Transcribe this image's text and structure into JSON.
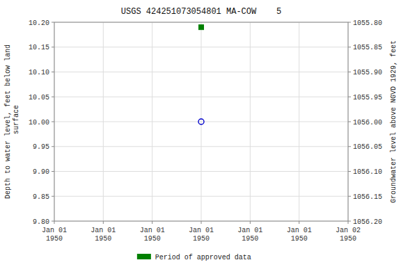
{
  "chart_data": {
    "type": "scatter",
    "title": "USGS 424251073054801 MA-COW    5",
    "y_label": "Depth to water level, feet below land\n surface",
    "y2_label": "Groundwater level above NGVD 1929, feet",
    "categories": [
      "Jan 01\n1950",
      "Jan 01\n1950",
      "Jan 01\n1950",
      "Jan 01\n1950",
      "Jan 01\n1950",
      "Jan 01\n1950",
      "Jan 02\n1950"
    ],
    "series": [
      {
        "values": [
          null,
          null,
          null,
          10.0,
          null,
          null,
          null
        ],
        "color": "#0000cc",
        "marker": "open-circle"
      },
      {
        "name": "Period of approved data",
        "values": [
          null,
          null,
          null,
          10.19,
          null,
          null,
          null
        ],
        "color": "#008000",
        "marker": "square"
      }
    ],
    "ylim": [
      9.8,
      10.2
    ],
    "yticks": [
      {
        "value": 9.8,
        "label": "9.80"
      },
      {
        "value": 9.85,
        "label": "9.85"
      },
      {
        "value": 9.9,
        "label": "9.90"
      },
      {
        "value": 9.95,
        "label": "9.95"
      },
      {
        "value": 10.0,
        "label": "10.00"
      },
      {
        "value": 10.05,
        "label": "10.05"
      },
      {
        "value": 10.1,
        "label": "10.10"
      },
      {
        "value": 10.15,
        "label": "10.15"
      },
      {
        "value": 10.2,
        "label": "10.20"
      }
    ],
    "y2lim": [
      1056.2,
      1055.8
    ],
    "y2ticks": [
      {
        "value": 1056.2,
        "label": "1056.20"
      },
      {
        "value": 1056.15,
        "label": "1056.15"
      },
      {
        "value": 1056.1,
        "label": "1056.10"
      },
      {
        "value": 1056.05,
        "label": "1056.05"
      },
      {
        "value": 1056.0,
        "label": "1056.00"
      },
      {
        "value": 1055.95,
        "label": "1055.95"
      },
      {
        "value": 1055.9,
        "label": "1055.90"
      },
      {
        "value": 1055.85,
        "label": "1055.85"
      },
      {
        "value": 1055.8,
        "label": "1055.80"
      }
    ],
    "grid": true,
    "legend": "bottom"
  }
}
